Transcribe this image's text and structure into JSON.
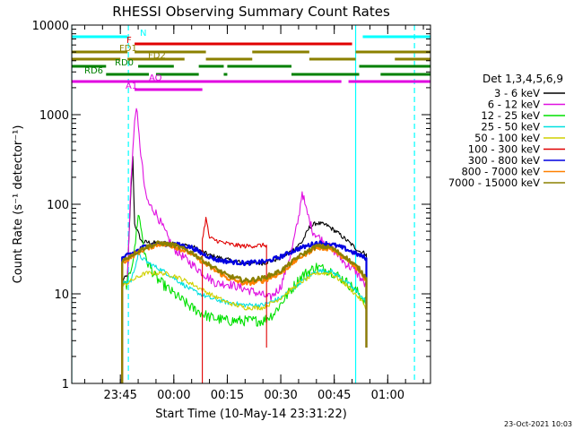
{
  "chart_data": {
    "type": "line",
    "title": "RHESSI Observing Summary Count Rates",
    "xlabel": "Start Time (10-May-14 23:31:22)",
    "ylabel": "Count Rate (s⁻¹ detector⁻¹)",
    "yscale": "log",
    "ylim": [
      1,
      10000
    ],
    "xlim": [
      "23:31:22",
      "01:12:00"
    ],
    "x_ticks": [
      "23:45",
      "00:00",
      "00:15",
      "00:30",
      "00:45",
      "01:00"
    ],
    "y_ticks": [
      "1",
      "10",
      "100",
      "1000",
      "10000"
    ],
    "legend_title": "Det 1,3,4,5,6,9",
    "legend_position": "right",
    "footer": "23-Oct-2021 10:03",
    "series": [
      {
        "name": "3 - 6 keV",
        "color": "#000000",
        "points": [
          [
            "23:45:30",
            14
          ],
          [
            "23:47",
            16
          ],
          [
            "23:48",
            150
          ],
          [
            "23:48:30",
            330
          ],
          [
            "23:49",
            60
          ],
          [
            "23:51",
            38
          ],
          [
            "23:55",
            37
          ],
          [
            "00:00",
            36
          ],
          [
            "00:05",
            34
          ],
          [
            "00:10",
            27
          ],
          [
            "00:15",
            24
          ],
          [
            "00:20",
            22
          ],
          [
            "00:25",
            22
          ],
          [
            "00:30",
            25
          ],
          [
            "00:33",
            30
          ],
          [
            "00:36",
            38
          ],
          [
            "00:38",
            55
          ],
          [
            "00:40",
            62
          ],
          [
            "00:43",
            58
          ],
          [
            "00:46",
            48
          ],
          [
            "00:49",
            38
          ],
          [
            "00:52",
            30
          ],
          [
            "00:54",
            28
          ]
        ]
      },
      {
        "name": "6 - 12 keV",
        "color": "#e010e0",
        "points": [
          [
            "23:45:30",
            12
          ],
          [
            "23:47",
            14
          ],
          [
            "23:48",
            200
          ],
          [
            "23:49",
            800
          ],
          [
            "23:49:30",
            1300
          ],
          [
            "23:50",
            700
          ],
          [
            "23:51",
            300
          ],
          [
            "23:52",
            130
          ],
          [
            "23:53",
            100
          ],
          [
            "23:55",
            80
          ],
          [
            "23:58",
            45
          ],
          [
            "00:00",
            32
          ],
          [
            "00:03",
            25
          ],
          [
            "00:06",
            20
          ],
          [
            "00:09",
            16
          ],
          [
            "00:12",
            13
          ],
          [
            "00:15",
            13
          ],
          [
            "00:18",
            12
          ],
          [
            "00:21",
            11
          ],
          [
            "00:24",
            10
          ],
          [
            "00:27",
            9
          ],
          [
            "00:30",
            12
          ],
          [
            "00:33",
            30
          ],
          [
            "00:35",
            70
          ],
          [
            "00:36",
            140
          ],
          [
            "00:37",
            90
          ],
          [
            "00:39",
            50
          ],
          [
            "00:42",
            38
          ],
          [
            "00:45",
            30
          ],
          [
            "00:48",
            22
          ],
          [
            "00:51",
            18
          ],
          [
            "00:54",
            12
          ]
        ]
      },
      {
        "name": "12 - 25 keV",
        "color": "#00e000",
        "points": [
          [
            "23:45:30",
            12
          ],
          [
            "23:47",
            13
          ],
          [
            "23:49",
            30
          ],
          [
            "23:50",
            80
          ],
          [
            "23:51",
            50
          ],
          [
            "23:52",
            25
          ],
          [
            "23:55",
            15
          ],
          [
            "00:00",
            10
          ],
          [
            "00:05",
            7
          ],
          [
            "00:10",
            5.5
          ],
          [
            "00:15",
            5
          ],
          [
            "00:20",
            5
          ],
          [
            "00:25",
            5
          ],
          [
            "00:28",
            6
          ],
          [
            "00:32",
            10
          ],
          [
            "00:36",
            16
          ],
          [
            "00:40",
            20
          ],
          [
            "00:44",
            18
          ],
          [
            "00:48",
            14
          ],
          [
            "00:52",
            10
          ],
          [
            "00:54",
            8
          ]
        ]
      },
      {
        "name": "25 - 50 keV",
        "color": "#00e0e0",
        "points": [
          [
            "23:45:30",
            13
          ],
          [
            "23:48",
            14
          ],
          [
            "23:50",
            27
          ],
          [
            "23:53",
            22
          ],
          [
            "23:57",
            18
          ],
          [
            "00:00",
            15
          ],
          [
            "00:05",
            11
          ],
          [
            "00:10",
            9
          ],
          [
            "00:15",
            8
          ],
          [
            "00:20",
            7.5
          ],
          [
            "00:25",
            7.5
          ],
          [
            "00:30",
            9
          ],
          [
            "00:35",
            13
          ],
          [
            "00:40",
            18
          ],
          [
            "00:44",
            18
          ],
          [
            "00:48",
            14
          ],
          [
            "00:52",
            10
          ],
          [
            "00:54",
            8
          ]
        ]
      },
      {
        "name": "50 - 100 keV",
        "color": "#d0d000",
        "points": [
          [
            "23:45:30",
            12
          ],
          [
            "23:48",
            14
          ],
          [
            "23:52",
            17
          ],
          [
            "23:57",
            17
          ],
          [
            "00:00",
            16
          ],
          [
            "00:05",
            13
          ],
          [
            "00:10",
            10
          ],
          [
            "00:15",
            8
          ],
          [
            "00:20",
            7
          ],
          [
            "00:25",
            7
          ],
          [
            "00:30",
            9
          ],
          [
            "00:35",
            13
          ],
          [
            "00:40",
            17
          ],
          [
            "00:44",
            17
          ],
          [
            "00:48",
            13
          ],
          [
            "00:52",
            9
          ],
          [
            "00:54",
            7
          ]
        ]
      },
      {
        "name": "100 - 300 keV",
        "color": "#e00000",
        "points": [
          [
            "00:08",
            40
          ],
          [
            "00:09",
            70
          ],
          [
            "00:10",
            42
          ],
          [
            "00:14",
            37
          ],
          [
            "00:17",
            35
          ],
          [
            "00:20",
            34
          ],
          [
            "00:26",
            35
          ]
        ]
      },
      {
        "name": "300 - 800 keV",
        "color": "#0000e0",
        "points": [
          [
            "23:45:30",
            25
          ],
          [
            "23:48",
            28
          ],
          [
            "23:52",
            34
          ],
          [
            "23:56",
            36
          ],
          [
            "00:00",
            36
          ],
          [
            "00:05",
            33
          ],
          [
            "00:08",
            28
          ],
          [
            "00:12",
            24
          ],
          [
            "00:15",
            23
          ],
          [
            "00:20",
            22
          ],
          [
            "00:26",
            23
          ],
          [
            "00:30",
            26
          ],
          [
            "00:35",
            32
          ],
          [
            "00:40",
            37
          ],
          [
            "00:44",
            36
          ],
          [
            "00:48",
            32
          ],
          [
            "00:52",
            27
          ],
          [
            "00:54",
            25
          ]
        ]
      },
      {
        "name": "800 - 7000 keV",
        "color": "#ff8000",
        "points": [
          [
            "23:45:30",
            22
          ],
          [
            "23:48",
            26
          ],
          [
            "23:52",
            32
          ],
          [
            "23:56",
            36
          ],
          [
            "00:00",
            34
          ],
          [
            "00:05",
            28
          ],
          [
            "00:10",
            20
          ],
          [
            "00:15",
            15
          ],
          [
            "00:20",
            13
          ],
          [
            "00:25",
            14
          ],
          [
            "00:30",
            17
          ],
          [
            "00:35",
            25
          ],
          [
            "00:40",
            33
          ],
          [
            "00:44",
            32
          ],
          [
            "00:48",
            25
          ],
          [
            "00:52",
            18
          ],
          [
            "00:54",
            14
          ]
        ]
      },
      {
        "name": "7000 - 15000 keV",
        "color": "#8b8000",
        "points": [
          [
            "23:45:30",
            23
          ],
          [
            "23:48",
            27
          ],
          [
            "23:52",
            33
          ],
          [
            "23:56",
            37
          ],
          [
            "00:00",
            35
          ],
          [
            "00:05",
            29
          ],
          [
            "00:10",
            21
          ],
          [
            "00:15",
            16
          ],
          [
            "00:20",
            14
          ],
          [
            "00:25",
            15
          ],
          [
            "00:30",
            18
          ],
          [
            "00:35",
            26
          ],
          [
            "00:40",
            34
          ],
          [
            "00:44",
            33
          ],
          [
            "00:48",
            26
          ],
          [
            "00:52",
            19
          ],
          [
            "00:54",
            15
          ]
        ]
      }
    ],
    "flags": [
      {
        "label": "N",
        "color": "#00ffff",
        "segments": [
          [
            "23:31:22",
            "23:47"
          ],
          [
            "00:53",
            "01:12"
          ]
        ]
      },
      {
        "label": "F",
        "color": "#e00000",
        "segments": [
          [
            "23:49",
            "00:50"
          ]
        ]
      },
      {
        "label": "FD1",
        "color": "#8b8000",
        "segments": [
          [
            "23:31:22",
            "23:47"
          ],
          [
            "23:49",
            "00:09"
          ],
          [
            "00:22",
            "00:38"
          ],
          [
            "00:51",
            "01:12"
          ]
        ]
      },
      {
        "label": "FD2",
        "color": "#8b8000",
        "segments": [
          [
            "23:31:22",
            "23:45"
          ],
          [
            "23:47",
            "00:03"
          ],
          [
            "00:09",
            "00:22"
          ],
          [
            "00:38",
            "00:51"
          ],
          [
            "01:02",
            "01:12"
          ]
        ]
      },
      {
        "label": "RD0",
        "color": "#008000",
        "segments": [
          [
            "23:31:22",
            "23:41"
          ],
          [
            "23:50",
            "00:00"
          ],
          [
            "00:07",
            "00:14"
          ],
          [
            "00:15",
            "00:33"
          ],
          [
            "00:52",
            "01:12"
          ]
        ]
      },
      {
        "label": "RD6",
        "color": "#008000",
        "segments": [
          [
            "23:41",
            "23:53"
          ],
          [
            "23:55",
            "00:07"
          ],
          [
            "00:14",
            "00:15"
          ],
          [
            "00:33",
            "00:52"
          ],
          [
            "00:58",
            "01:12"
          ]
        ]
      },
      {
        "label": "AO",
        "color": "#e000e0",
        "segments": [
          [
            "23:31:22",
            "00:47"
          ],
          [
            "00:49",
            "01:12"
          ]
        ]
      },
      {
        "label": "A1",
        "color": "#e000e0",
        "segments": [
          [
            "23:49",
            "00:08"
          ]
        ]
      }
    ],
    "vlines": [
      {
        "x": "23:31:22",
        "color": "#00ffff",
        "style": "solid"
      },
      {
        "x": "23:47:15",
        "color": "#00ffff",
        "style": "dashed"
      },
      {
        "x": "00:51",
        "color": "#00ffff",
        "style": "solid"
      },
      {
        "x": "01:07:30",
        "color": "#00ffff",
        "style": "dashed"
      }
    ]
  }
}
